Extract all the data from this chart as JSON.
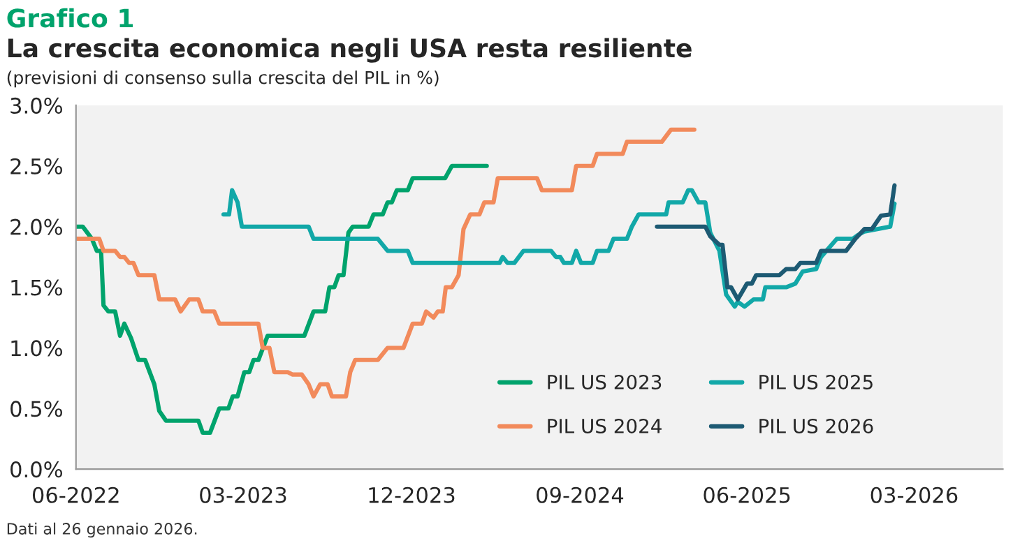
{
  "chart_data": {
    "type": "line",
    "title": "La crescita economica negli USA resta resiliente",
    "subtitle": "(previsioni di consenso sulla crescita del PIL in %)",
    "annotations": [
      "Grafico 1",
      "Dati al 26 gennaio 2026."
    ],
    "xlim": [
      "2022-06-01",
      "2026-07-24"
    ],
    "xticks": [
      {
        "value": "2022-06-01",
        "label": "06-2022"
      },
      {
        "value": "2023-03-01",
        "label": "03-2023"
      },
      {
        "value": "2023-12-01",
        "label": "12-2023"
      },
      {
        "value": "2024-09-01",
        "label": "09-2024"
      },
      {
        "value": "2025-06-01",
        "label": "06-2025"
      },
      {
        "value": "2026-03-01",
        "label": "03-2026"
      }
    ],
    "ylim": [
      0,
      3
    ],
    "yticks": [
      {
        "value": 0,
        "label": "0.0%"
      },
      {
        "value": 0.5,
        "label": "0.5%"
      },
      {
        "value": 1,
        "label": "1.0%"
      },
      {
        "value": 1.5,
        "label": "1.5%"
      },
      {
        "value": 2,
        "label": "2.0%"
      },
      {
        "value": 2.5,
        "label": "2.5%"
      },
      {
        "value": 3,
        "label": "3.0%"
      }
    ],
    "grid": false,
    "legend": "bottom right",
    "series": [
      {
        "name": "PIL US 2023",
        "color": "#00a36c",
        "x": [
          "2022-06-01",
          "2022-06-12",
          "2022-06-27",
          "2022-07-05",
          "2022-07-12",
          "2022-07-16",
          "2022-07-24",
          "2022-08-04",
          "2022-08-12",
          "2022-08-19",
          "2022-08-30",
          "2022-09-11",
          "2022-09-22",
          "2022-10-07",
          "2022-10-15",
          "2022-10-26",
          "2022-12-18",
          "2022-12-25",
          "2023-01-06",
          "2023-01-21",
          "2023-02-05",
          "2023-02-12",
          "2023-02-20",
          "2023-03-03",
          "2023-03-11",
          "2023-03-18",
          "2023-03-26",
          "2023-04-10",
          "2023-06-09",
          "2023-06-24",
          "2023-07-13",
          "2023-07-20",
          "2023-07-28",
          "2023-08-04",
          "2023-08-12",
          "2023-08-20",
          "2023-08-27",
          "2023-09-22",
          "2023-09-30",
          "2023-10-15",
          "2023-10-23",
          "2023-10-30",
          "2023-11-07",
          "2023-11-25",
          "2023-12-03",
          "2024-01-25",
          "2024-02-05",
          "2024-04-02"
        ],
        "values": [
          2.0,
          2.0,
          1.9,
          1.8,
          1.8,
          1.35,
          1.3,
          1.3,
          1.1,
          1.2,
          1.08,
          0.9,
          0.9,
          0.7,
          0.48,
          0.4,
          0.4,
          0.3,
          0.3,
          0.5,
          0.5,
          0.6,
          0.6,
          0.8,
          0.8,
          0.9,
          0.9,
          1.1,
          1.1,
          1.3,
          1.3,
          1.5,
          1.5,
          1.6,
          1.6,
          1.95,
          2.0,
          2.0,
          2.1,
          2.1,
          2.2,
          2.2,
          2.3,
          2.3,
          2.4,
          2.4,
          2.5,
          2.5
        ]
      },
      {
        "name": "PIL US 2024",
        "color": "#f28a5b",
        "x": [
          "2022-06-01",
          "2022-07-09",
          "2022-07-16",
          "2022-08-04",
          "2022-08-12",
          "2022-08-19",
          "2022-08-27",
          "2022-09-03",
          "2022-09-11",
          "2022-10-07",
          "2022-10-15",
          "2022-11-10",
          "2022-11-19",
          "2022-12-03",
          "2022-12-18",
          "2022-12-25",
          "2023-01-13",
          "2023-01-21",
          "2023-03-26",
          "2023-04-02",
          "2023-04-13",
          "2023-04-21",
          "2023-05-13",
          "2023-05-21",
          "2023-06-05",
          "2023-06-16",
          "2023-06-24",
          "2023-07-05",
          "2023-07-17",
          "2023-07-24",
          "2023-08-16",
          "2023-08-23",
          "2023-08-31",
          "2023-10-07",
          "2023-10-23",
          "2023-11-18",
          "2023-12-03",
          "2023-12-18",
          "2023-12-25",
          "2024-01-06",
          "2024-01-13",
          "2024-01-21",
          "2024-01-26",
          "2024-02-05",
          "2024-02-16",
          "2024-02-24",
          "2024-03-06",
          "2024-03-21",
          "2024-03-29",
          "2024-04-13",
          "2024-04-20",
          "2024-06-23",
          "2024-07-01",
          "2024-08-19",
          "2024-08-26",
          "2024-09-22",
          "2024-09-29",
          "2024-11-10",
          "2024-11-17",
          "2025-01-13",
          "2025-01-28",
          "2025-03-07"
        ],
        "values": [
          1.9,
          1.9,
          1.8,
          1.8,
          1.75,
          1.75,
          1.7,
          1.7,
          1.6,
          1.6,
          1.4,
          1.4,
          1.3,
          1.4,
          1.4,
          1.3,
          1.3,
          1.2,
          1.2,
          1.0,
          1.0,
          0.8,
          0.8,
          0.78,
          0.78,
          0.7,
          0.6,
          0.7,
          0.7,
          0.6,
          0.6,
          0.8,
          0.9,
          0.9,
          1.0,
          1.0,
          1.2,
          1.2,
          1.3,
          1.25,
          1.3,
          1.3,
          1.5,
          1.5,
          1.6,
          1.98,
          2.1,
          2.1,
          2.2,
          2.2,
          2.4,
          2.4,
          2.3,
          2.3,
          2.5,
          2.5,
          2.6,
          2.6,
          2.7,
          2.7,
          2.8,
          2.8
        ]
      },
      {
        "name": "PIL US 2025",
        "color": "#12a8a8",
        "x": [
          "2023-01-28",
          "2023-02-06",
          "2023-02-11",
          "2023-02-20",
          "2023-02-27",
          "2023-06-16",
          "2023-06-24",
          "2023-10-07",
          "2023-10-23",
          "2023-11-25",
          "2023-12-03",
          "2024-04-23",
          "2024-04-28",
          "2024-05-06",
          "2024-05-17",
          "2024-06-01",
          "2024-07-16",
          "2024-07-24",
          "2024-07-31",
          "2024-08-06",
          "2024-08-19",
          "2024-08-26",
          "2024-09-03",
          "2024-09-22",
          "2024-09-29",
          "2024-10-18",
          "2024-10-26",
          "2024-11-17",
          "2024-11-25",
          "2024-12-06",
          "2025-01-20",
          "2025-01-24",
          "2025-02-16",
          "2025-02-25",
          "2025-03-03",
          "2025-03-14",
          "2025-03-25",
          "2025-04-02",
          "2025-04-17",
          "2025-04-28",
          "2025-05-12",
          "2025-05-17",
          "2025-05-28",
          "2025-06-12",
          "2025-06-27",
          "2025-07-01",
          "2025-08-04",
          "2025-08-19",
          "2025-08-31",
          "2025-09-22",
          "2025-09-30",
          "2025-10-26",
          "2025-11-21",
          "2025-11-29",
          "2025-12-10",
          "2026-01-21",
          "2026-01-28"
        ],
        "values": [
          2.1,
          2.1,
          2.3,
          2.2,
          2.0,
          2.0,
          1.9,
          1.9,
          1.8,
          1.8,
          1.7,
          1.7,
          1.75,
          1.7,
          1.7,
          1.8,
          1.8,
          1.75,
          1.75,
          1.7,
          1.7,
          1.8,
          1.7,
          1.7,
          1.8,
          1.8,
          1.9,
          1.9,
          2.0,
          2.1,
          2.1,
          2.2,
          2.2,
          2.3,
          2.3,
          2.2,
          2.2,
          1.95,
          1.8,
          1.44,
          1.34,
          1.38,
          1.34,
          1.4,
          1.4,
          1.5,
          1.5,
          1.53,
          1.63,
          1.65,
          1.75,
          1.9,
          1.9,
          1.93,
          1.96,
          2.0,
          2.19
        ]
      },
      {
        "name": "PIL US 2026",
        "color": "#1d5a73",
        "x": [
          "2025-01-05",
          "2025-03-25",
          "2025-04-02",
          "2025-04-17",
          "2025-04-22",
          "2025-04-30",
          "2025-05-06",
          "2025-05-17",
          "2025-06-01",
          "2025-06-09",
          "2025-06-16",
          "2025-07-24",
          "2025-08-04",
          "2025-08-19",
          "2025-08-27",
          "2025-09-22",
          "2025-09-30",
          "2025-11-10",
          "2025-11-25",
          "2025-12-10",
          "2025-12-22",
          "2026-01-06",
          "2026-01-21",
          "2026-01-28"
        ],
        "values": [
          2.0,
          2.0,
          1.92,
          1.85,
          1.85,
          1.5,
          1.5,
          1.4,
          1.53,
          1.53,
          1.6,
          1.6,
          1.65,
          1.65,
          1.7,
          1.7,
          1.8,
          1.8,
          1.9,
          1.98,
          1.98,
          2.09,
          2.1,
          2.34
        ]
      }
    ]
  }
}
